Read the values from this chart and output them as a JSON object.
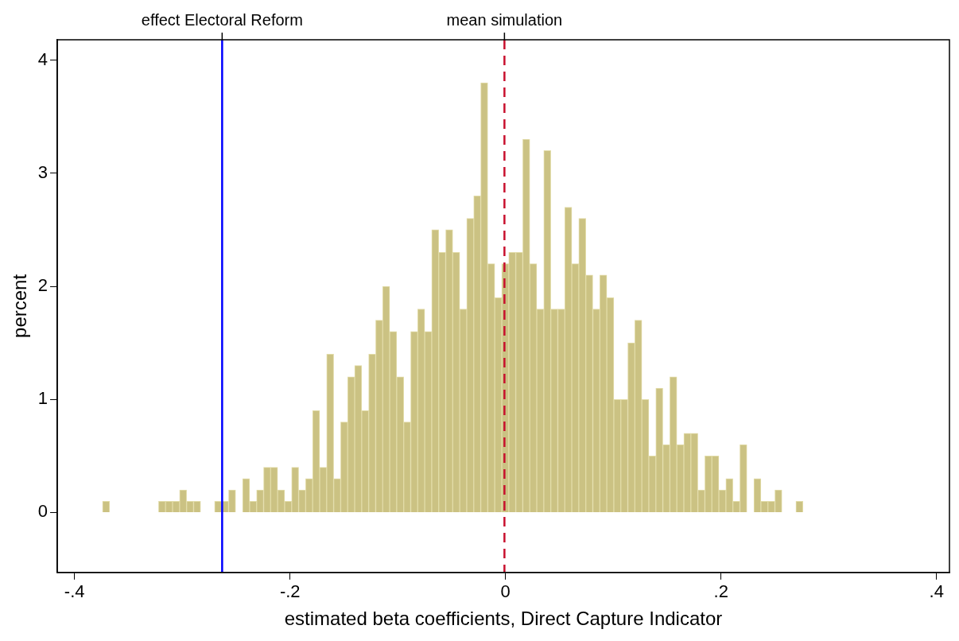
{
  "chart_data": {
    "type": "histogram",
    "xlabel": "estimated beta coefficients, Direct Capture Indicator",
    "ylabel": "percent",
    "bins": [
      -0.374,
      -0.3675,
      -0.361,
      -0.3545,
      -0.348,
      -0.3415,
      -0.335,
      -0.3285,
      -0.322,
      -0.3155,
      -0.309,
      -0.3025,
      -0.296,
      -0.2895,
      -0.283,
      -0.2765,
      -0.27,
      -0.2635,
      -0.257,
      -0.2505,
      -0.244,
      -0.2375,
      -0.231,
      -0.2245,
      -0.218,
      -0.2115,
      -0.205,
      -0.1985,
      -0.192,
      -0.1855,
      -0.179,
      -0.1725,
      -0.166,
      -0.1595,
      -0.153,
      -0.1465,
      -0.14,
      -0.1335,
      -0.127,
      -0.1205,
      -0.114,
      -0.1075,
      -0.101,
      -0.0945,
      -0.088,
      -0.0815,
      -0.075,
      -0.0685,
      -0.062,
      -0.0555,
      -0.049,
      -0.0425,
      -0.036,
      -0.0295,
      -0.023,
      -0.0165,
      -0.01,
      -0.0035,
      0.003,
      0.0095,
      0.016,
      0.0225,
      0.029,
      0.0355,
      0.042,
      0.0485,
      0.055,
      0.0615,
      0.068,
      0.0745,
      0.081,
      0.0875,
      0.094,
      0.1005,
      0.107,
      0.1135,
      0.12,
      0.1265,
      0.133,
      0.1395,
      0.146,
      0.1525,
      0.159,
      0.1655,
      0.172,
      0.1785,
      0.185,
      0.1915,
      0.198,
      0.2045,
      0.211,
      0.2175,
      0.224,
      0.2305,
      0.237,
      0.2435,
      0.25,
      0.2565,
      0.263,
      0.2695,
      0.276
    ],
    "values": [
      0.1,
      0,
      0,
      0,
      0,
      0,
      0,
      0,
      0.1,
      0.1,
      0.1,
      0.2,
      0.1,
      0.1,
      0,
      0,
      0.1,
      0.1,
      0.2,
      0,
      0.3,
      0.1,
      0.2,
      0.4,
      0.4,
      0.2,
      0.1,
      0.4,
      0.2,
      0.3,
      0.9,
      0.4,
      1.4,
      0.3,
      0.8,
      1.2,
      1.3,
      0.9,
      1.4,
      1.7,
      2.0,
      1.6,
      1.2,
      0.8,
      1.6,
      1.8,
      1.6,
      2.5,
      2.3,
      2.5,
      2.3,
      1.8,
      2.6,
      2.8,
      3.8,
      2.2,
      1.9,
      2.2,
      2.3,
      2.3,
      3.3,
      2.2,
      1.8,
      3.2,
      1.8,
      1.8,
      2.7,
      2.2,
      2.6,
      2.1,
      1.8,
      2.1,
      1.9,
      1.0,
      1.0,
      1.5,
      1.7,
      1.0,
      0.5,
      1.1,
      0.6,
      1.2,
      0.6,
      0.7,
      0.7,
      0.2,
      0.5,
      0.5,
      0.2,
      0.3,
      0.1,
      0.6,
      0,
      0.3,
      0.1,
      0.1,
      0.2,
      0,
      0,
      0.1
    ],
    "color": "#cbc283",
    "xlim": [
      -0.416,
      0.412
    ],
    "xticks": [
      {
        "value": -0.4,
        "label": "-.4"
      },
      {
        "value": -0.2,
        "label": "-.2"
      },
      0,
      {
        "value": 0.2,
        "label": ".2"
      },
      {
        "value": 0.4,
        "label": ".4"
      }
    ],
    "ylim": [
      -0.53,
      4.18
    ],
    "yticks": [
      0,
      1,
      2,
      3,
      4
    ],
    "ref_lines": [
      {
        "axis": "x",
        "value": -0.263,
        "label": "effect Electoral Reform",
        "color": "#0000ff",
        "line_style": "solid"
      },
      {
        "axis": "x",
        "value": -0.001,
        "label": "mean simulation",
        "color": "#c8102e",
        "line_style": "dashed"
      }
    ],
    "legend": false
  }
}
